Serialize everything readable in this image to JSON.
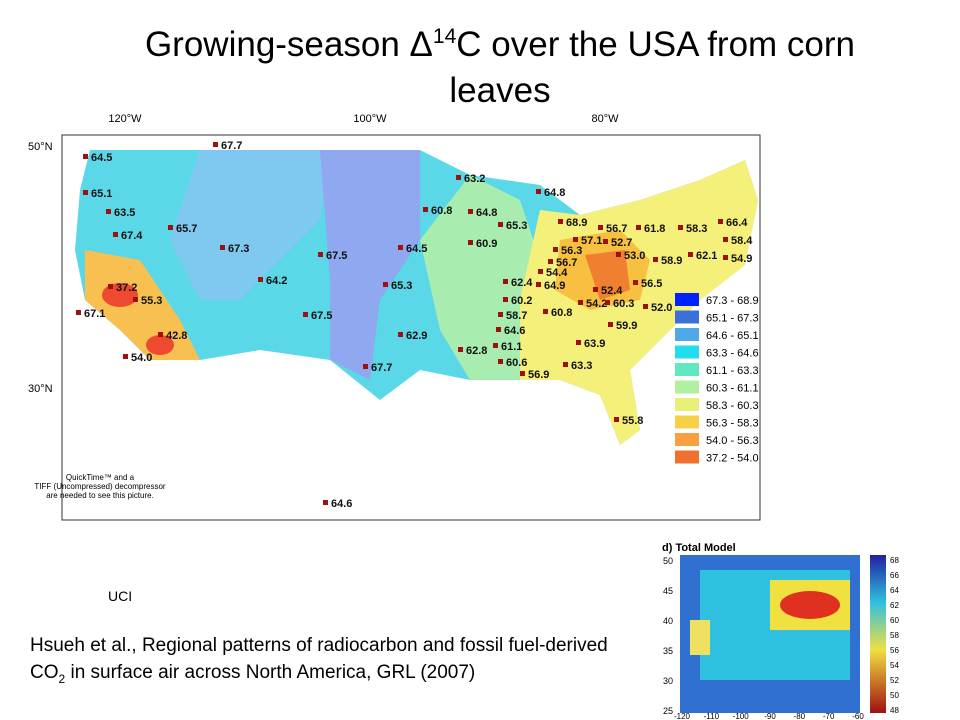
{
  "title": {
    "pre": "Growing-season Δ",
    "sup": "14",
    "post": "C over the USA from corn leaves"
  },
  "map": {
    "lon_labels": [
      "120°W",
      "100°W",
      "80°W"
    ],
    "lat_labels": [
      "50°N",
      "30°N"
    ],
    "points": [
      "67.7",
      "64.5",
      "65.1",
      "63.5",
      "65.7",
      "67.4",
      "67.3",
      "64.2",
      "67.5",
      "65.3",
      "64.5",
      "60.8",
      "64.8",
      "63.2",
      "64.8",
      "65.3",
      "60.9",
      "68.9",
      "56.7",
      "57.1",
      "52.7",
      "61.8",
      "58.3",
      "66.4",
      "58.4",
      "62.1",
      "54.9",
      "53.0",
      "58.9",
      "56.3",
      "56.7",
      "54.4",
      "62.4",
      "64.9",
      "52.4",
      "56.5",
      "60.2",
      "54.2",
      "60.3",
      "52.0",
      "58.7",
      "60.8",
      "64.6",
      "61.1",
      "59.9",
      "63.9",
      "62.8",
      "60.6",
      "63.3",
      "56.9",
      "55.8",
      "62.9",
      "67.7",
      "67.5",
      "37.2",
      "55.3",
      "67.1",
      "42.8",
      "54.0",
      "64.6"
    ],
    "legend": [
      "67.3 - 68.9",
      "65.1 - 67.3",
      "64.6 - 65.1",
      "63.3 - 64.6",
      "61.1 - 63.3",
      "60.3 - 61.1",
      "58.3 - 60.3",
      "56.3 - 58.3",
      "54.0 - 56.3",
      "37.2 - 54.0"
    ],
    "quicktime": [
      "QuickTime™ and a",
      "TIFF (Uncompressed) decompressor",
      "are needed to see this picture."
    ]
  },
  "credit": "UCI",
  "citation": {
    "pre": "Hsueh et al., Regional patterns of radiocarbon and fossil fuel-derived CO",
    "sub": "2",
    "post": " in surface air across North America, GRL (2007)"
  },
  "inset": {
    "title": "d) Total Model",
    "y_labels": [
      "50",
      "45",
      "40",
      "35",
      "30",
      "25"
    ],
    "x_labels": [
      "-120",
      "-110",
      "-100",
      "-90",
      "-80",
      "-70",
      "-60"
    ],
    "colorbar_labels": [
      "68",
      "66",
      "64",
      "62",
      "60",
      "58",
      "56",
      "54",
      "52",
      "50",
      "48"
    ]
  }
}
